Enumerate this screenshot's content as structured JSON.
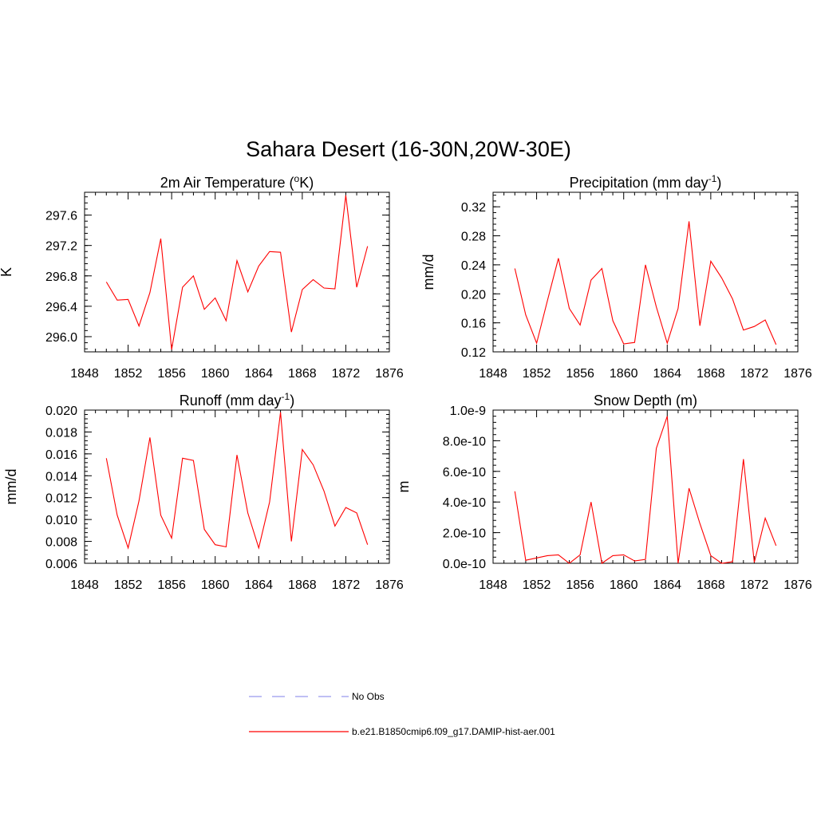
{
  "figure_title": "Sahara Desert (16-30N,20W-30E)",
  "legend": {
    "items": [
      {
        "label": "No Obs",
        "color": "#9999ee",
        "style": "dashed"
      },
      {
        "label": "b.e21.B1850cmip6.f09_g17.DAMIP-hist-aer.001",
        "color": "#ff0000",
        "style": "solid"
      }
    ]
  },
  "chart_data": [
    {
      "type": "line",
      "title": "2m Air Temperature (",
      "title_sup": "o",
      "title_post": "K)",
      "ylabel": "K",
      "xlim": [
        1848,
        1876
      ],
      "ylim": [
        295.8,
        297.9
      ],
      "xticks": [
        1848,
        1852,
        1856,
        1860,
        1864,
        1868,
        1872,
        1876
      ],
      "xtick_labels": [
        "1848",
        "1852",
        "1856",
        "1860",
        "1864",
        "1868",
        "1872",
        "1876"
      ],
      "yticks": [
        296.0,
        296.4,
        296.8,
        297.2,
        297.6
      ],
      "ytick_labels": [
        "296.0",
        "296.4",
        "296.8",
        "297.2",
        "297.6"
      ],
      "series": [
        {
          "color": "#ff0000",
          "x": [
            1850,
            1851,
            1852,
            1853,
            1854,
            1855,
            1856,
            1857,
            1858,
            1859,
            1860,
            1861,
            1862,
            1863,
            1864,
            1865,
            1866,
            1867,
            1868,
            1869,
            1870,
            1871,
            1872,
            1873,
            1874
          ],
          "y": [
            296.72,
            296.48,
            296.49,
            296.14,
            296.58,
            297.29,
            295.83,
            296.65,
            296.8,
            296.36,
            296.51,
            296.21,
            297.0,
            296.59,
            296.93,
            297.12,
            297.11,
            296.06,
            296.62,
            296.75,
            296.64,
            296.63,
            297.86,
            296.65,
            297.19
          ]
        }
      ]
    },
    {
      "type": "line",
      "title": "Precipitation (mm day",
      "title_sup": "-1",
      "title_post": ")",
      "ylabel": "mm/d",
      "xlim": [
        1848,
        1876
      ],
      "ylim": [
        0.12,
        0.34
      ],
      "xticks": [
        1848,
        1852,
        1856,
        1860,
        1864,
        1868,
        1872,
        1876
      ],
      "xtick_labels": [
        "1848",
        "1852",
        "1856",
        "1860",
        "1864",
        "1868",
        "1872",
        "1876"
      ],
      "yticks": [
        0.12,
        0.16,
        0.2,
        0.24,
        0.28,
        0.32
      ],
      "ytick_labels": [
        "0.12",
        "0.16",
        "0.20",
        "0.24",
        "0.28",
        "0.32"
      ],
      "series": [
        {
          "color": "#ff0000",
          "x": [
            1850,
            1851,
            1852,
            1853,
            1854,
            1855,
            1856,
            1857,
            1858,
            1859,
            1860,
            1861,
            1862,
            1863,
            1864,
            1865,
            1866,
            1867,
            1868,
            1869,
            1870,
            1871,
            1872,
            1873,
            1874
          ],
          "y": [
            0.235,
            0.171,
            0.132,
            0.191,
            0.249,
            0.18,
            0.157,
            0.219,
            0.235,
            0.163,
            0.131,
            0.133,
            0.24,
            0.182,
            0.132,
            0.18,
            0.3,
            0.156,
            0.245,
            0.222,
            0.193,
            0.15,
            0.155,
            0.164,
            0.13
          ]
        }
      ]
    },
    {
      "type": "line",
      "title": "Runoff (mm day",
      "title_sup": "-1",
      "title_post": ")",
      "ylabel": "mm/d",
      "xlim": [
        1848,
        1876
      ],
      "ylim": [
        0.006,
        0.02
      ],
      "xticks": [
        1848,
        1852,
        1856,
        1860,
        1864,
        1868,
        1872,
        1876
      ],
      "xtick_labels": [
        "1848",
        "1852",
        "1856",
        "1860",
        "1864",
        "1868",
        "1872",
        "1876"
      ],
      "yticks": [
        0.006,
        0.008,
        0.01,
        0.012,
        0.014,
        0.016,
        0.018,
        0.02
      ],
      "ytick_labels": [
        "0.006",
        "0.008",
        "0.010",
        "0.012",
        "0.014",
        "0.016",
        "0.018",
        "0.020"
      ],
      "series": [
        {
          "color": "#ff0000",
          "x": [
            1850,
            1851,
            1852,
            1853,
            1854,
            1855,
            1856,
            1857,
            1858,
            1859,
            1860,
            1861,
            1862,
            1863,
            1864,
            1865,
            1866,
            1867,
            1868,
            1869,
            1870,
            1871,
            1872,
            1873,
            1874
          ],
          "y": [
            0.0156,
            0.0104,
            0.0074,
            0.0117,
            0.0175,
            0.0104,
            0.0083,
            0.0156,
            0.0154,
            0.0091,
            0.0077,
            0.0075,
            0.0159,
            0.0106,
            0.0074,
            0.0116,
            0.0198,
            0.008,
            0.0164,
            0.015,
            0.0126,
            0.0094,
            0.0111,
            0.0106,
            0.0077
          ]
        }
      ]
    },
    {
      "type": "line",
      "title": "Snow Depth (m)",
      "title_sup": "",
      "title_post": "",
      "ylabel": "m",
      "xlim": [
        1848,
        1876
      ],
      "ylim": [
        0.0,
        1e-09
      ],
      "xticks": [
        1848,
        1852,
        1856,
        1860,
        1864,
        1868,
        1872,
        1876
      ],
      "xtick_labels": [
        "1848",
        "1852",
        "1856",
        "1860",
        "1864",
        "1868",
        "1872",
        "1876"
      ],
      "yticks": [
        0.0,
        2e-10,
        4e-10,
        6e-10,
        8e-10,
        1e-09
      ],
      "ytick_labels": [
        "0.0e-10",
        "2.0e-10",
        "4.0e-10",
        "6.0e-10",
        "8.0e-10",
        "1.0e-9"
      ],
      "series": [
        {
          "color": "#ff0000",
          "x": [
            1850,
            1851,
            1852,
            1853,
            1854,
            1855,
            1856,
            1857,
            1858,
            1859,
            1860,
            1861,
            1862,
            1863,
            1864,
            1865,
            1866,
            1867,
            1868,
            1869,
            1870,
            1871,
            1872,
            1873,
            1874
          ],
          "y": [
            4.7e-10,
            2e-11,
            3.5e-11,
            5e-11,
            5.5e-11,
            0.0,
            5.5e-11,
            4e-10,
            0.0,
            5e-11,
            5.5e-11,
            1.5e-11,
            2.5e-11,
            7.5e-10,
            9.6e-10,
            0.0,
            4.9e-10,
            2.6e-10,
            5e-11,
            0.0,
            1e-11,
            6.8e-10,
            5e-12,
            2.95e-10,
            1.15e-10
          ]
        }
      ]
    }
  ]
}
